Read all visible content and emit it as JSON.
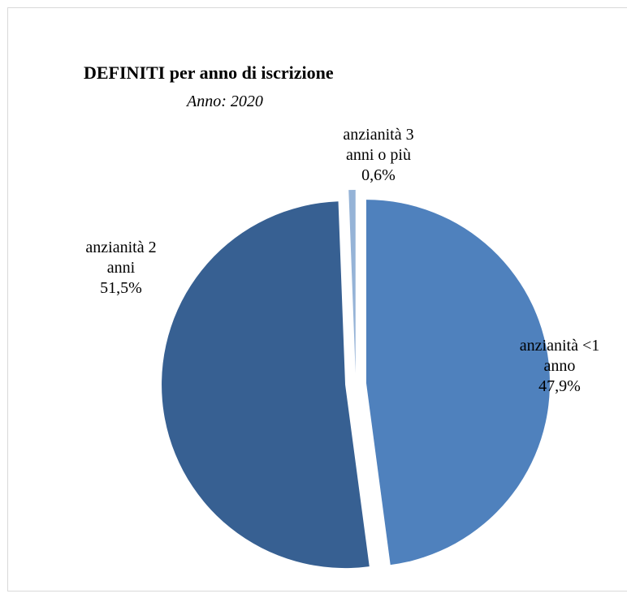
{
  "chart_data": {
    "type": "pie",
    "title": "DEFINITI per anno di iscrizione",
    "subtitle": "Anno: 2020",
    "slices": [
      {
        "label_lines": [
          "anzianità <1",
          "anno"
        ],
        "value_label": "47,9%",
        "value": 47.9,
        "color": "#4f81bd"
      },
      {
        "label_lines": [
          "anzianità 2",
          "anni"
        ],
        "value_label": "51,5%",
        "value": 51.5,
        "color": "#376092"
      },
      {
        "label_lines": [
          "anzianità 3",
          "anni o più"
        ],
        "value_label": "0,6%",
        "value": 0.6,
        "color": "#95b3d7"
      }
    ]
  }
}
